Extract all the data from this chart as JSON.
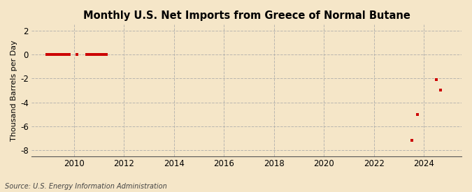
{
  "title": "Monthly U.S. Net Imports from Greece of Normal Butane",
  "ylabel": "Thousand Barrels per Day",
  "source": "Source: U.S. Energy Information Administration",
  "background_color": "#f5e6c8",
  "plot_bg_color": "#f5e6c8",
  "xlim": [
    2008.3,
    2025.5
  ],
  "ylim": [
    -8.5,
    2.5
  ],
  "yticks": [
    -8,
    -6,
    -4,
    -2,
    0,
    2
  ],
  "xticks": [
    2010,
    2012,
    2014,
    2016,
    2018,
    2020,
    2022,
    2024
  ],
  "dot_color": "#cc0000",
  "dot_size": 3.5,
  "near_zero_points": [
    [
      2008.9,
      0.0
    ],
    [
      2009.0,
      0.0
    ],
    [
      2009.1,
      0.0
    ],
    [
      2009.2,
      0.0
    ],
    [
      2009.3,
      0.0
    ],
    [
      2009.4,
      0.0
    ],
    [
      2009.5,
      0.0
    ],
    [
      2009.6,
      0.0
    ],
    [
      2009.7,
      0.0
    ],
    [
      2009.8,
      0.0
    ],
    [
      2010.1,
      0.0
    ],
    [
      2010.5,
      0.0
    ],
    [
      2010.6,
      0.0
    ],
    [
      2010.7,
      0.0
    ],
    [
      2010.8,
      0.0
    ],
    [
      2010.9,
      0.0
    ],
    [
      2011.0,
      0.0
    ],
    [
      2011.1,
      0.0
    ],
    [
      2011.2,
      0.0
    ],
    [
      2011.3,
      0.0
    ]
  ],
  "notable_points": [
    [
      2023.5,
      -7.2
    ],
    [
      2023.75,
      -5.0
    ],
    [
      2024.5,
      -2.1
    ],
    [
      2024.67,
      -3.0
    ]
  ]
}
